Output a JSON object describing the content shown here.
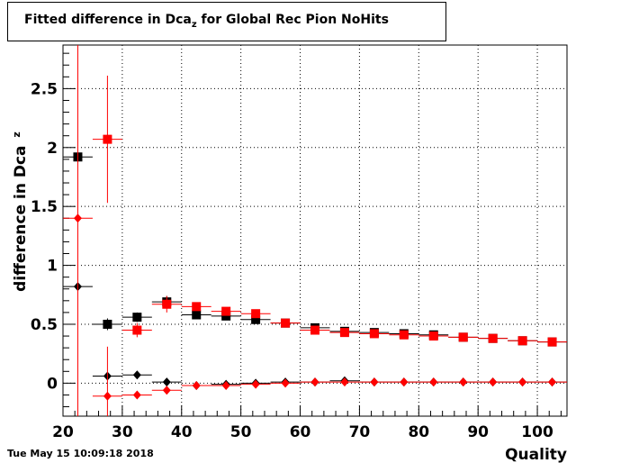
{
  "title_prefix": "Fitted difference in Dca",
  "title_sub": "z",
  "title_suffix": " for Global Rec Pion NoHits",
  "timestamp": "Tue May 15 10:09:18 2018",
  "chart_data": {
    "type": "scatter",
    "xlabel": "Quality",
    "ylabel": "difference in Dca",
    "ylabel_sub": "z",
    "xlim": [
      20,
      105
    ],
    "ylim": [
      -0.28,
      2.87
    ],
    "xticks": [
      20,
      30,
      40,
      50,
      60,
      70,
      80,
      90,
      100
    ],
    "yticks": [
      0,
      0.5,
      1,
      1.5,
      2,
      2.5
    ],
    "grid": true,
    "series": [
      {
        "color": "#000000",
        "marker": "square",
        "points": [
          {
            "x": 22.5,
            "y": 1.92,
            "err": 0.03
          },
          {
            "x": 27.5,
            "y": 0.5,
            "err": 0.05
          },
          {
            "x": 32.5,
            "y": 0.56,
            "err": 0.04
          },
          {
            "x": 37.5,
            "y": 0.69,
            "err": 0.05
          },
          {
            "x": 42.5,
            "y": 0.58,
            "err": 0.02
          },
          {
            "x": 47.5,
            "y": 0.57,
            "err": 0.02
          },
          {
            "x": 52.5,
            "y": 0.54,
            "err": 0.02
          },
          {
            "x": 57.5,
            "y": 0.51,
            "err": 0.01
          },
          {
            "x": 62.5,
            "y": 0.47,
            "err": 0.01
          },
          {
            "x": 67.5,
            "y": 0.44,
            "err": 0.01
          },
          {
            "x": 72.5,
            "y": 0.43,
            "err": 0.01
          },
          {
            "x": 77.5,
            "y": 0.42,
            "err": 0.01
          },
          {
            "x": 82.5,
            "y": 0.41,
            "err": 0.01
          },
          {
            "x": 87.5,
            "y": 0.39,
            "err": 0.01
          },
          {
            "x": 92.5,
            "y": 0.38,
            "err": 0.01
          },
          {
            "x": 97.5,
            "y": 0.36,
            "err": 0.01
          },
          {
            "x": 102.5,
            "y": 0.35,
            "err": 0.01
          }
        ]
      },
      {
        "color": "#ff0000",
        "marker": "square",
        "points": [
          {
            "x": 27.5,
            "y": 2.07,
            "err": 0.54
          },
          {
            "x": 32.5,
            "y": 0.45,
            "err": 0.06
          },
          {
            "x": 37.5,
            "y": 0.67,
            "err": 0.07
          },
          {
            "x": 42.5,
            "y": 0.65,
            "err": 0.03
          },
          {
            "x": 47.5,
            "y": 0.61,
            "err": 0.02
          },
          {
            "x": 52.5,
            "y": 0.59,
            "err": 0.02
          },
          {
            "x": 57.5,
            "y": 0.51,
            "err": 0.01
          },
          {
            "x": 62.5,
            "y": 0.45,
            "err": 0.01
          },
          {
            "x": 67.5,
            "y": 0.43,
            "err": 0.01
          },
          {
            "x": 72.5,
            "y": 0.42,
            "err": 0.01
          },
          {
            "x": 77.5,
            "y": 0.41,
            "err": 0.01
          },
          {
            "x": 82.5,
            "y": 0.4,
            "err": 0.01
          },
          {
            "x": 87.5,
            "y": 0.39,
            "err": 0.01
          },
          {
            "x": 92.5,
            "y": 0.38,
            "err": 0.01
          },
          {
            "x": 97.5,
            "y": 0.36,
            "err": 0.01
          },
          {
            "x": 102.5,
            "y": 0.35,
            "err": 0.01
          }
        ]
      },
      {
        "color": "#000000",
        "marker": "diamond",
        "points": [
          {
            "x": 22.5,
            "y": 0.82,
            "err": 0.02
          },
          {
            "x": 27.5,
            "y": 0.06,
            "err": 0.03
          },
          {
            "x": 32.5,
            "y": 0.07,
            "err": 0.02
          },
          {
            "x": 37.5,
            "y": 0.01,
            "err": 0.01
          },
          {
            "x": 42.5,
            "y": -0.02,
            "err": 0.01
          },
          {
            "x": 47.5,
            "y": -0.01,
            "err": 0.01
          },
          {
            "x": 52.5,
            "y": 0.0,
            "err": 0.01
          },
          {
            "x": 57.5,
            "y": 0.01,
            "err": 0.005
          },
          {
            "x": 62.5,
            "y": 0.01,
            "err": 0.005
          },
          {
            "x": 67.5,
            "y": 0.02,
            "err": 0.005
          },
          {
            "x": 72.5,
            "y": 0.01,
            "err": 0.005
          },
          {
            "x": 77.5,
            "y": 0.01,
            "err": 0.005
          },
          {
            "x": 82.5,
            "y": 0.01,
            "err": 0.005
          },
          {
            "x": 87.5,
            "y": 0.01,
            "err": 0.005
          },
          {
            "x": 92.5,
            "y": 0.01,
            "err": 0.005
          },
          {
            "x": 97.5,
            "y": 0.01,
            "err": 0.005
          },
          {
            "x": 102.5,
            "y": 0.01,
            "err": 0.005
          }
        ]
      },
      {
        "color": "#ff0000",
        "marker": "diamond",
        "points": [
          {
            "x": 22.5,
            "y": 1.4,
            "err": 3.0
          },
          {
            "x": 27.5,
            "y": -0.11,
            "err": 0.42
          },
          {
            "x": 32.5,
            "y": -0.1,
            "err": 0.03
          },
          {
            "x": 37.5,
            "y": -0.06,
            "err": 0.02
          },
          {
            "x": 42.5,
            "y": -0.02,
            "err": 0.01
          },
          {
            "x": 47.5,
            "y": -0.02,
            "err": 0.01
          },
          {
            "x": 52.5,
            "y": -0.01,
            "err": 0.01
          },
          {
            "x": 57.5,
            "y": 0.0,
            "err": 0.005
          },
          {
            "x": 62.5,
            "y": 0.01,
            "err": 0.005
          },
          {
            "x": 67.5,
            "y": 0.01,
            "err": 0.005
          },
          {
            "x": 72.5,
            "y": 0.01,
            "err": 0.005
          },
          {
            "x": 77.5,
            "y": 0.01,
            "err": 0.005
          },
          {
            "x": 82.5,
            "y": 0.01,
            "err": 0.005
          },
          {
            "x": 87.5,
            "y": 0.01,
            "err": 0.005
          },
          {
            "x": 92.5,
            "y": 0.01,
            "err": 0.005
          },
          {
            "x": 97.5,
            "y": 0.01,
            "err": 0.005
          },
          {
            "x": 102.5,
            "y": 0.01,
            "err": 0.005
          }
        ]
      }
    ]
  }
}
